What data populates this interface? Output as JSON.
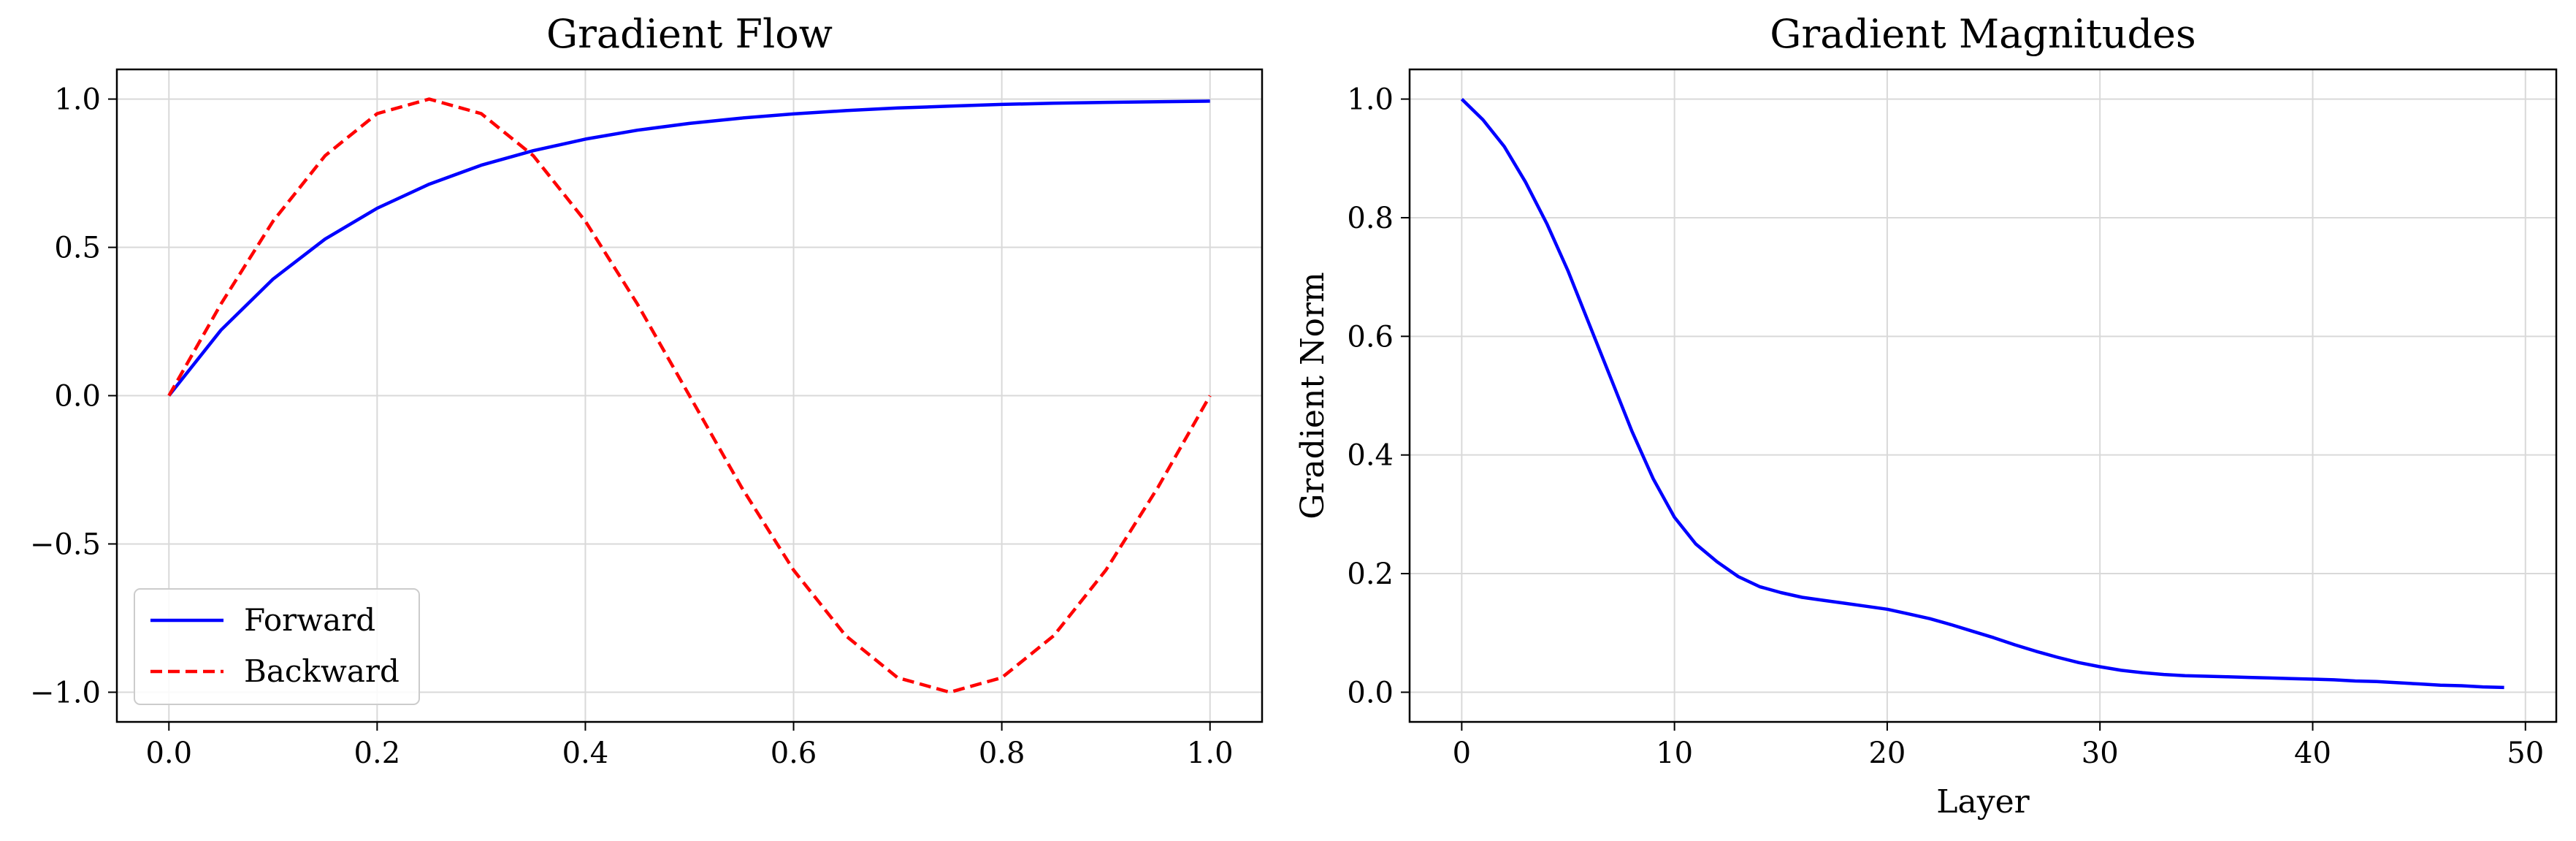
{
  "chart_data": [
    {
      "type": "line",
      "title": "Gradient Flow",
      "xlabel": "",
      "ylabel": "",
      "xlim": [
        -0.05,
        1.05
      ],
      "ylim": [
        -1.1,
        1.1
      ],
      "xticks": [
        0.0,
        0.2,
        0.4,
        0.6,
        0.8,
        1.0
      ],
      "xtick_labels": [
        "0.0",
        "0.2",
        "0.4",
        "0.6",
        "0.8",
        "1.0"
      ],
      "yticks": [
        -1.0,
        -0.5,
        0.0,
        0.5,
        1.0
      ],
      "ytick_labels": [
        "−1.0",
        "−0.5",
        "0.0",
        "0.5",
        "1.0"
      ],
      "grid": true,
      "legend_position": "lower-left",
      "x": [
        0.0,
        0.05,
        0.1,
        0.15,
        0.2,
        0.25,
        0.3,
        0.35,
        0.4,
        0.45,
        0.5,
        0.55,
        0.6,
        0.65,
        0.7,
        0.75,
        0.8,
        0.85,
        0.9,
        0.95,
        1.0
      ],
      "series": [
        {
          "name": "Forward",
          "color": "#0000ff",
          "style": "solid",
          "values": [
            0.0,
            0.221,
            0.393,
            0.528,
            0.632,
            0.713,
            0.777,
            0.826,
            0.865,
            0.895,
            0.918,
            0.936,
            0.95,
            0.961,
            0.97,
            0.976,
            0.982,
            0.986,
            0.989,
            0.991,
            0.993
          ]
        },
        {
          "name": "Backward",
          "color": "#ff0000",
          "style": "dashed",
          "values": [
            0.0,
            0.309,
            0.588,
            0.809,
            0.951,
            1.0,
            0.951,
            0.809,
            0.588,
            0.309,
            0.0,
            -0.309,
            -0.588,
            -0.809,
            -0.951,
            -1.0,
            -0.951,
            -0.809,
            -0.588,
            -0.309,
            0.0
          ]
        }
      ]
    },
    {
      "type": "line",
      "title": "Gradient Magnitudes",
      "xlabel": "Layer",
      "ylabel": "Gradient Norm",
      "xlim": [
        -2.45,
        51.45
      ],
      "ylim": [
        -0.05,
        1.05
      ],
      "xticks": [
        0,
        10,
        20,
        30,
        40,
        50
      ],
      "xtick_labels": [
        "0",
        "10",
        "20",
        "30",
        "40",
        "50"
      ],
      "yticks": [
        0.0,
        0.2,
        0.4,
        0.6,
        0.8,
        1.0
      ],
      "ytick_labels": [
        "0.0",
        "0.2",
        "0.4",
        "0.6",
        "0.8",
        "1.0"
      ],
      "grid": true,
      "x": [
        0,
        1,
        2,
        3,
        4,
        5,
        6,
        7,
        8,
        9,
        10,
        11,
        12,
        13,
        14,
        15,
        16,
        17,
        18,
        19,
        20,
        21,
        22,
        23,
        24,
        25,
        26,
        27,
        28,
        29,
        30,
        31,
        32,
        33,
        34,
        35,
        36,
        37,
        38,
        39,
        40,
        41,
        42,
        43,
        44,
        45,
        46,
        47,
        48,
        49
      ],
      "series": [
        {
          "name": "",
          "color": "#0000ff",
          "style": "solid",
          "values": [
            1.0,
            0.965,
            0.92,
            0.86,
            0.79,
            0.71,
            0.62,
            0.53,
            0.44,
            0.36,
            0.295,
            0.25,
            0.22,
            0.195,
            0.178,
            0.168,
            0.16,
            0.155,
            0.15,
            0.145,
            0.14,
            0.132,
            0.124,
            0.114,
            0.103,
            0.092,
            0.08,
            0.069,
            0.059,
            0.05,
            0.043,
            0.037,
            0.033,
            0.03,
            0.028,
            0.027,
            0.026,
            0.025,
            0.024,
            0.023,
            0.022,
            0.021,
            0.019,
            0.018,
            0.016,
            0.014,
            0.012,
            0.011,
            0.009,
            0.008
          ]
        }
      ]
    }
  ]
}
